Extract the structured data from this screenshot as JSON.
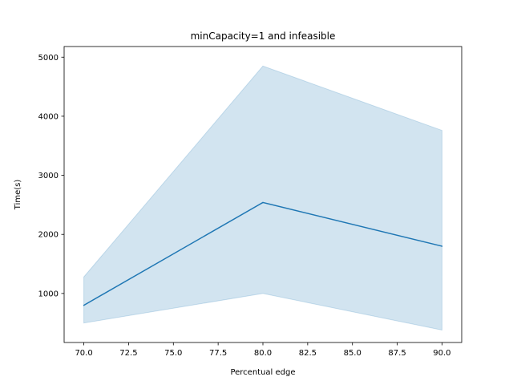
{
  "chart_data": {
    "type": "line",
    "title": "minCapacity=1 and infeasible",
    "xlabel": "Percentual edge",
    "ylabel": "Time(s)",
    "xlim": [
      68.9,
      91.1
    ],
    "ylim": [
      170,
      5180
    ],
    "x_ticks": [
      70.0,
      72.5,
      75.0,
      77.5,
      80.0,
      82.5,
      85.0,
      87.5,
      90.0
    ],
    "x_tick_labels": [
      "70.0",
      "72.5",
      "75.0",
      "77.5",
      "80.0",
      "82.5",
      "85.0",
      "87.5",
      "90.0"
    ],
    "y_ticks": [
      1000,
      2000,
      3000,
      4000,
      5000
    ],
    "y_tick_labels": [
      "1000",
      "2000",
      "3000",
      "4000",
      "5000"
    ],
    "grid": false,
    "legend": "none",
    "series": [
      {
        "x": [
          70,
          80,
          90
        ],
        "values": [
          800,
          2540,
          1800
        ],
        "ci_lower": [
          500,
          1000,
          380
        ],
        "ci_upper": [
          1280,
          4850,
          3760
        ],
        "color": "#1f77b4",
        "band_color": "#1f77b4"
      }
    ]
  }
}
